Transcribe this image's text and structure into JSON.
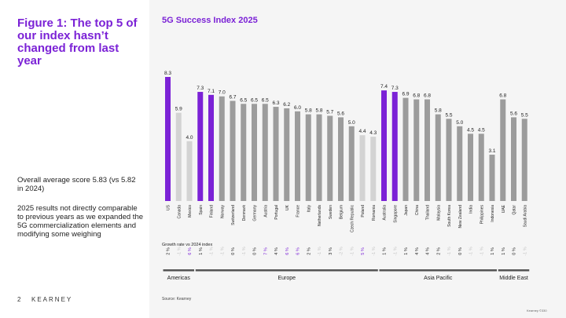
{
  "figure": {
    "title": "Figure 1: The top 5 of our index hasn’t changed from last year",
    "note1": "Overall average score 5.83 (vs 5.82 in 2024)",
    "note2": "2025 results not directly comparable to previous years as we expanded the 5G commercialization elements and modifying some weighing"
  },
  "footer": {
    "page": "2",
    "brand": "KEARNEY",
    "source": "Source: Kearney",
    "copyright": "Kearney ©330"
  },
  "colors": {
    "purple": "#7b22d6",
    "gray_dark": "#9c9c9c",
    "gray_light": "#d3d3d3",
    "text": "#222222"
  },
  "chart_data": {
    "type": "bar",
    "title": "5G Success Index 2025",
    "growth_label": "Growth rate vs 2024 index",
    "ylim": [
      0,
      9
    ],
    "categories": [
      "US",
      "Canada",
      "Mexico",
      "Spain",
      "Finland",
      "Norway",
      "Switzerland",
      "Denmark",
      "Germany",
      "Austria",
      "Portugal",
      "UK",
      "France",
      "Italy",
      "Netherlands",
      "Sweden",
      "Belgium",
      "Czech Republic",
      "Poland",
      "Romania",
      "Australia",
      "Singapore",
      "Japan",
      "China",
      "Thailand",
      "Malaysia",
      "South Korea",
      "New Zealand",
      "India",
      "Philippines",
      "Indonesia",
      "UAE",
      "Qatar",
      "Saudi Arabia"
    ],
    "values": [
      8.3,
      5.9,
      4.0,
      7.3,
      7.1,
      7.0,
      6.7,
      6.5,
      6.5,
      6.5,
      6.3,
      6.2,
      6.0,
      5.8,
      5.8,
      5.7,
      5.6,
      5.0,
      4.4,
      4.3,
      7.4,
      7.3,
      6.9,
      6.8,
      6.8,
      5.8,
      5.5,
      5.0,
      4.5,
      4.5,
      3.1,
      6.8,
      5.6,
      5.5
    ],
    "bar_styles": [
      "purple",
      "light",
      "light",
      "purple",
      "purple",
      "dark",
      "dark",
      "dark",
      "dark",
      "dark",
      "dark",
      "dark",
      "dark",
      "dark",
      "dark",
      "dark",
      "dark",
      "dark",
      "light",
      "light",
      "purple",
      "purple",
      "dark",
      "dark",
      "dark",
      "dark",
      "dark",
      "dark",
      "dark",
      "dark",
      "dark",
      "dark",
      "dark",
      "dark"
    ],
    "growth": [
      "2 %",
      "-1 %",
      "6 %",
      "1 %",
      "-1 %",
      "-1 %",
      "0 %",
      "-1 %",
      "0 %",
      "7 %",
      "4 %",
      "6 %",
      "6 %",
      "2 %",
      "-1 %",
      "3 %",
      "-2 %",
      "-1 %",
      "5 %",
      "-1 %",
      "1 %",
      "-1 %",
      "1 %",
      "4 %",
      "4 %",
      "2 %",
      "-1 %",
      "0 %",
      "-1 %",
      "-1 %",
      "1 %",
      "1 %",
      "0 %",
      "-1 %"
    ],
    "growth_styles": [
      "dark",
      "faint",
      "purple",
      "dark",
      "faint",
      "faint",
      "dark",
      "faint",
      "dark",
      "purple",
      "dark",
      "purple",
      "purple",
      "dark",
      "faint",
      "dark",
      "faint",
      "faint",
      "purple",
      "faint",
      "dark",
      "faint",
      "dark",
      "dark",
      "dark",
      "dark",
      "faint",
      "dark",
      "faint",
      "faint",
      "dark",
      "dark",
      "dark",
      "faint"
    ],
    "regions": [
      {
        "name": "Americas",
        "start": 0,
        "end": 2
      },
      {
        "name": "Europe",
        "start": 3,
        "end": 19
      },
      {
        "name": "Asia Pacific",
        "start": 20,
        "end": 30
      },
      {
        "name": "Middle East",
        "start": 31,
        "end": 33
      }
    ]
  }
}
